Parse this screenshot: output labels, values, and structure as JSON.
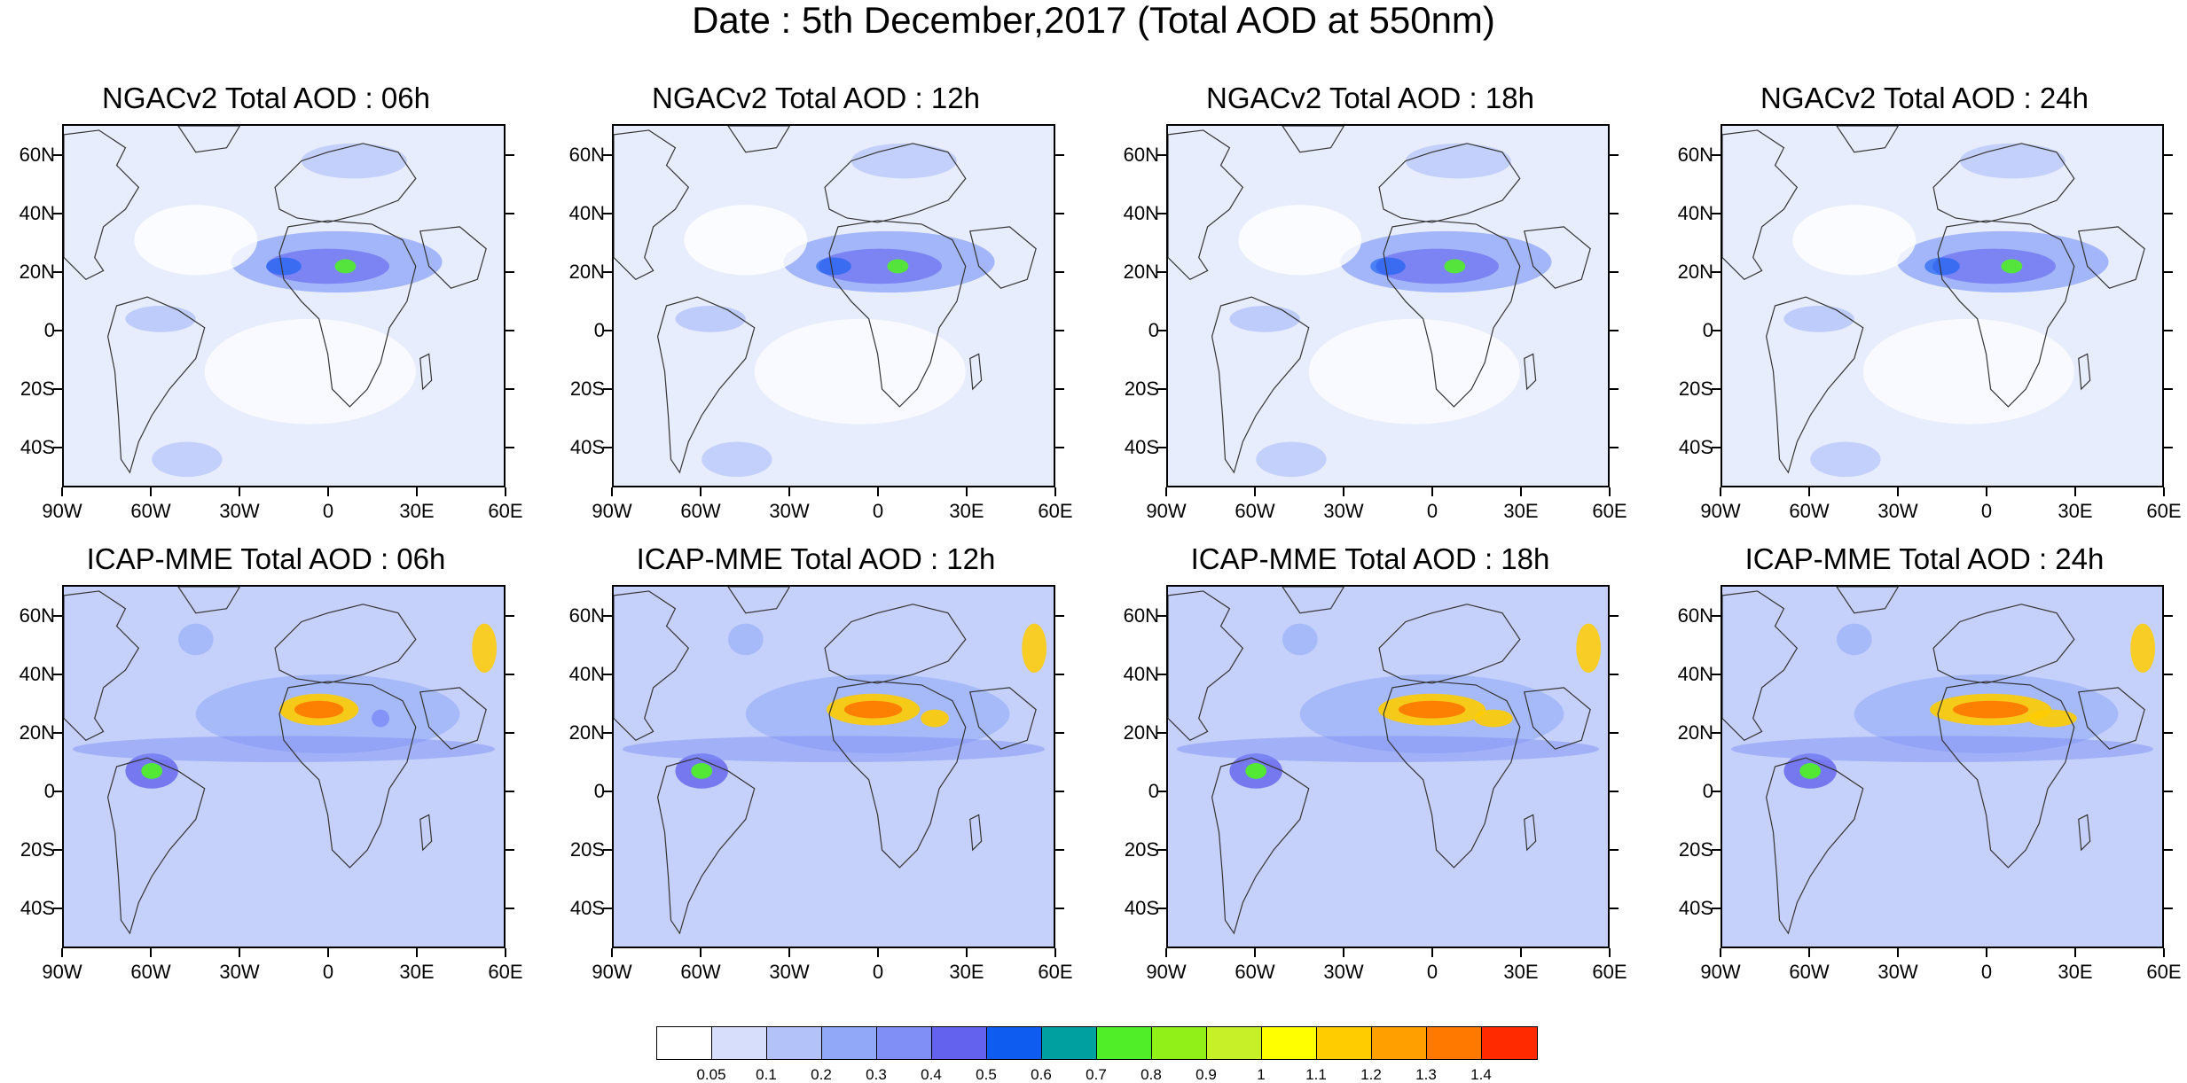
{
  "main_title": "Date : 5th December,2017 (Total AOD at 550nm)",
  "panels": [
    {
      "title": "NGACv2 Total AOD : 06h"
    },
    {
      "title": "NGACv2 Total AOD : 12h"
    },
    {
      "title": "NGACv2 Total AOD : 18h"
    },
    {
      "title": "NGACv2 Total AOD : 24h"
    },
    {
      "title": "ICAP-MME Total AOD : 06h"
    },
    {
      "title": "ICAP-MME Total AOD : 12h"
    },
    {
      "title": "ICAP-MME Total AOD : 18h"
    },
    {
      "title": "ICAP-MME Total AOD : 24h"
    }
  ],
  "axes": {
    "lat_labels": [
      "60N",
      "40N",
      "20N",
      "0",
      "20S",
      "40S"
    ],
    "lon_labels": [
      "90W",
      "60W",
      "30W",
      "0",
      "30E",
      "60E"
    ]
  },
  "colorbar": {
    "colors": [
      "#ffffff",
      "#d6defc",
      "#b3c3fa",
      "#91a8f8",
      "#7f8ff6",
      "#6262ee",
      "#0f5cf0",
      "#00a0a0",
      "#50ee28",
      "#90f018",
      "#c8f028",
      "#ffff00",
      "#ffcc00",
      "#ffa000",
      "#ff7800",
      "#ff2a00"
    ],
    "labels": [
      "0.05",
      "0.1",
      "0.2",
      "0.3",
      "0.4",
      "0.5",
      "0.6",
      "0.7",
      "0.8",
      "0.9",
      "1",
      "1.1",
      "1.2",
      "1.3",
      "1.4"
    ]
  }
}
